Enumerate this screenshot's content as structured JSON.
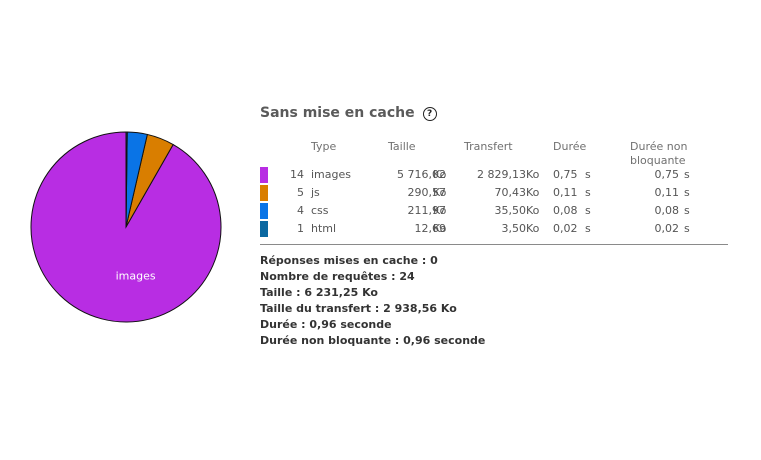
{
  "panel": {
    "title": "Sans mise en cache",
    "help_icon": "question-circle-icon",
    "headers": {
      "type": "Type",
      "size": "Taille",
      "transfer": "Transfert",
      "duration": "Durée",
      "nonblocking_line1": "Durée non",
      "nonblocking_line2": "bloquante"
    },
    "rows": [
      {
        "count": "14",
        "type": "images",
        "size": "5 716,02",
        "size_unit": "Ko",
        "transfer": "2 829,13",
        "transfer_unit": "Ko",
        "duration": "0,75",
        "duration_unit": "s",
        "nonblocking": "0,75",
        "nonblocking_unit": "s",
        "color": "#b82de3"
      },
      {
        "count": "5",
        "type": "js",
        "size": "290,57",
        "size_unit": "Ko",
        "transfer": "70,43",
        "transfer_unit": "Ko",
        "duration": "0,11",
        "duration_unit": "s",
        "nonblocking": "0,11",
        "nonblocking_unit": "s",
        "color": "#d97e00"
      },
      {
        "count": "4",
        "type": "css",
        "size": "211,97",
        "size_unit": "Ko",
        "transfer": "35,50",
        "transfer_unit": "Ko",
        "duration": "0,08",
        "duration_unit": "s",
        "nonblocking": "0,08",
        "nonblocking_unit": "s",
        "color": "#0a74e6"
      },
      {
        "count": "1",
        "type": "html",
        "size": "12,69",
        "size_unit": "Ko",
        "transfer": "3,50",
        "transfer_unit": "Ko",
        "duration": "0,02",
        "duration_unit": "s",
        "nonblocking": "0,02",
        "nonblocking_unit": "s",
        "color": "#0b68a1"
      }
    ],
    "summary": {
      "cached_label": "Réponses mises en cache",
      "cached_value": "0",
      "requests_label": "Nombre de requêtes",
      "requests_value": "24",
      "size_label": "Taille",
      "size_value": "6 231,25  Ko",
      "transfer_label": "Taille du transfert",
      "transfer_value": "2 938,56  Ko",
      "duration_label": "Durée",
      "duration_value": "0,96 seconde",
      "nonblocking_label": "Durée non bloquante",
      "nonblocking_value": "0,96  seconde"
    }
  },
  "chart_data": {
    "type": "pie",
    "slices": [
      {
        "label": "images",
        "value": 5716.02,
        "color": "#b82de3"
      },
      {
        "label": "js",
        "value": 290.57,
        "color": "#d97e00"
      },
      {
        "label": "css",
        "value": 211.97,
        "color": "#0a74e6"
      },
      {
        "label": "html",
        "value": 12.69,
        "color": "#0b68a1"
      }
    ],
    "labelled_slice": "images"
  }
}
